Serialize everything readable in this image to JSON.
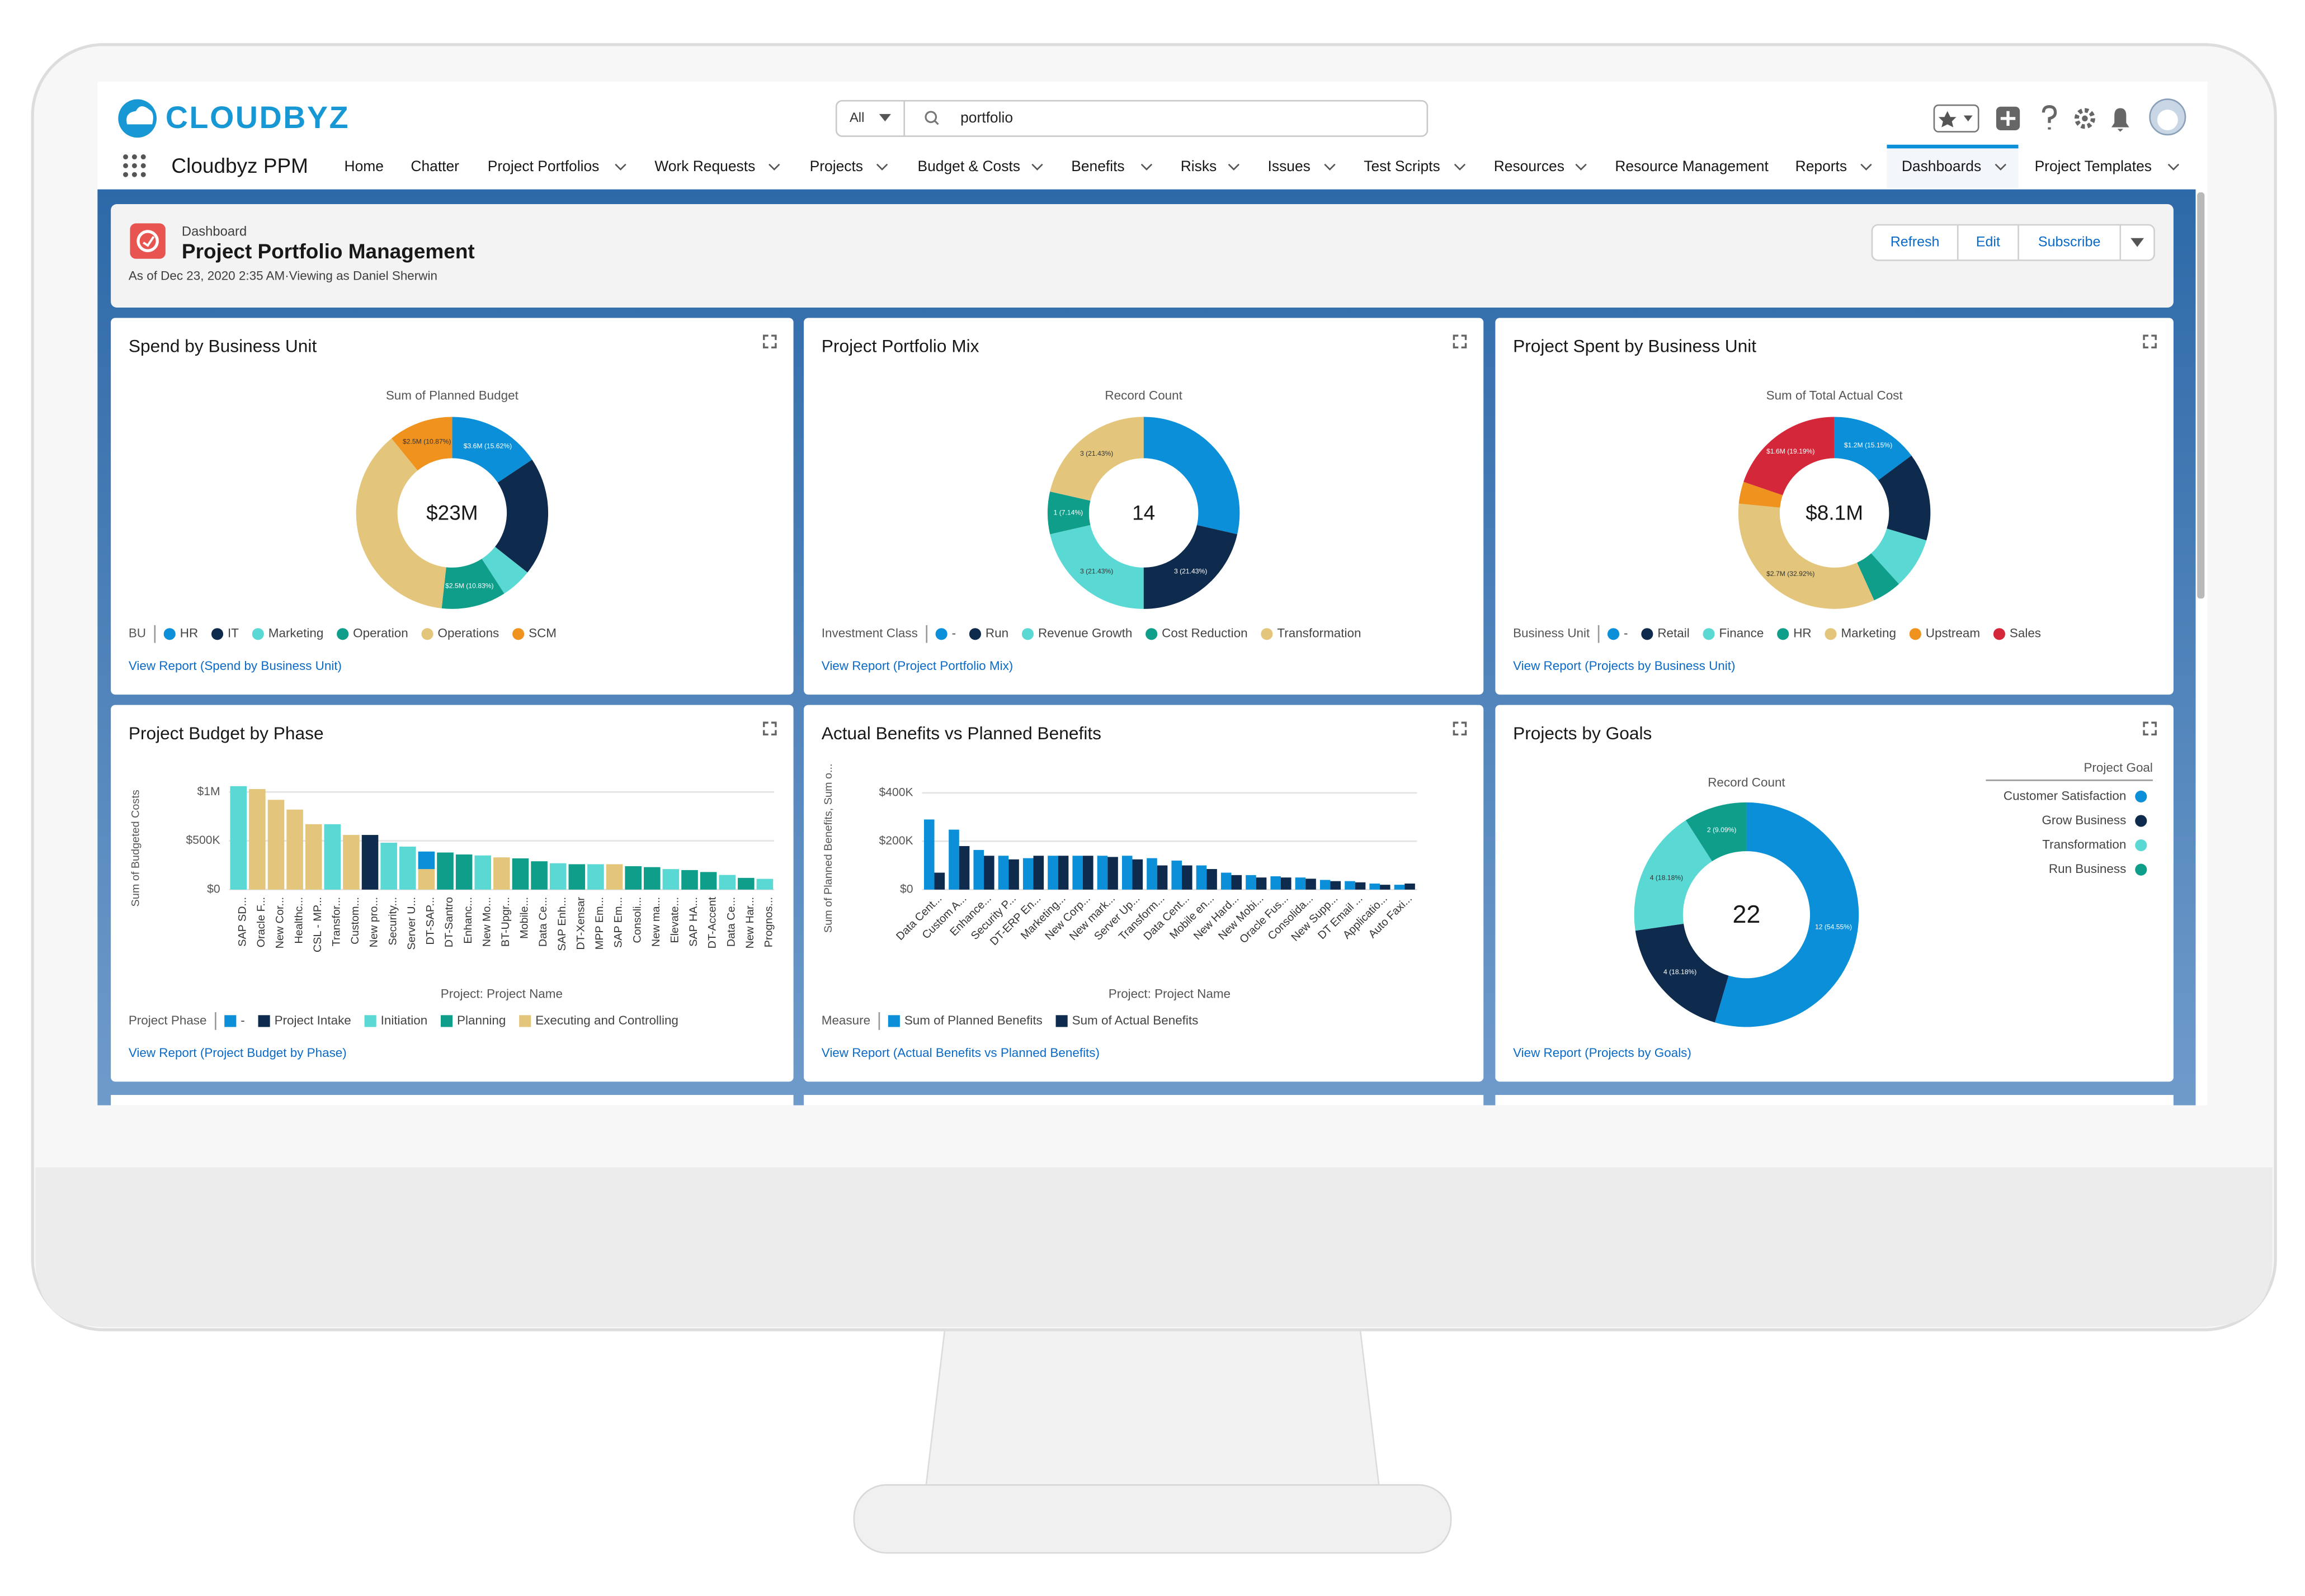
{
  "app": {
    "brand": "CLOUDBYZ",
    "app_name": "Cloudbyz PPM",
    "search_scope": "All",
    "search_text": "portfolio"
  },
  "nav": [
    "Home",
    "Chatter",
    "Project Portfolios",
    "Work Requests",
    "Projects",
    "Budget & Costs",
    "Benefits",
    "Risks",
    "Issues",
    "Test Scripts",
    "Resources",
    "Resource Management",
    "Reports",
    "Dashboards",
    "Project Templates"
  ],
  "nav_active_index": 13,
  "header": {
    "label": "Dashboard",
    "title": "Project Portfolio Management",
    "subtitle": "As of Dec 23, 2020 2:35 AM·Viewing as Daniel Sherwin",
    "buttons": [
      "Refresh",
      "Edit",
      "Subscribe"
    ]
  },
  "widgets": [
    {
      "title": "Spend by Business Unit",
      "link": "View Report (Spend by Business Unit)",
      "chart_data": {
        "type": "donut",
        "subtitle": "Sum of Planned Budget",
        "center_label": "$23M",
        "legend_title": "BU",
        "legend": "bottom",
        "categories": [
          "HR",
          "IT",
          "Marketing",
          "Operation",
          "Operations",
          "SCM"
        ],
        "values": [
          3.6,
          4.6,
          1.2,
          2.5,
          8.6,
          2.5
        ],
        "value_labels": [
          "$3.6M (15.62%)",
          null,
          null,
          "$2.5M (10.83%)",
          null,
          "$2.5M (10.87%)"
        ],
        "colors": [
          "#0b8fd8",
          "#0e2a4d",
          "#5ad8d3",
          "#0e9e8a",
          "#e3c67c",
          "#f0921e"
        ]
      }
    },
    {
      "title": "Project Portfolio Mix",
      "link": "View Report (Project Portfolio Mix)",
      "chart_data": {
        "type": "donut",
        "subtitle": "Record Count",
        "center_label": "14",
        "legend_title": "Investment Class",
        "legend": "bottom",
        "categories": [
          "-",
          "Run",
          "Revenue Growth",
          "Cost Reduction",
          "Transformation"
        ],
        "values": [
          4,
          3,
          3,
          1,
          3
        ],
        "value_labels": [
          null,
          "3 (21.43%)",
          "3 (21.43%)",
          "1 (7.14%)",
          "3 (21.43%)"
        ],
        "colors": [
          "#0b8fd8",
          "#0e2a4d",
          "#5ad8d3",
          "#0e9e8a",
          "#e3c67c"
        ]
      }
    },
    {
      "title": "Project Spent by Business Unit",
      "link": "View Report (Projects by Business Unit)",
      "chart_data": {
        "type": "donut",
        "subtitle": "Sum of Total Actual Cost",
        "center_label": "$8.1M",
        "legend_title": "Business Unit",
        "legend": "bottom",
        "categories": [
          "-",
          "Retail",
          "Finance",
          "HR",
          "Marketing",
          "Upstream",
          "Sales"
        ],
        "values": [
          1.2,
          1.2,
          0.7,
          0.4,
          2.7,
          0.3,
          1.6
        ],
        "value_labels": [
          "$1.2M (15.15%)",
          null,
          null,
          null,
          "$2.7M (32.92%)",
          null,
          "$1.6M (19.19%)"
        ],
        "colors": [
          "#0b8fd8",
          "#0e2a4d",
          "#5ad8d3",
          "#0e9e8a",
          "#e3c67c",
          "#f0921e",
          "#d4283a"
        ]
      }
    },
    {
      "title": "Project Budget by Phase",
      "link": "View Report (Project Budget by Phase)",
      "chart_data": {
        "type": "bar",
        "stacked": true,
        "xlabel_rotation": 90,
        "ylabel": "Sum of Budgeted Costs",
        "xlabel": "Project: Project Name",
        "legend_title": "Project Phase",
        "ylim": [
          0,
          1090000
        ],
        "yticks": [
          {
            "value": 0,
            "label": "$0"
          },
          {
            "value": 500000,
            "label": "$500K"
          },
          {
            "value": 1000000,
            "label": "$1M"
          }
        ],
        "categories": [
          "SAP SD...",
          "Oracle F...",
          "New Cor...",
          "Healthc...",
          "CSL - MP...",
          "Transfor...",
          "Custom...",
          "New pro...",
          "Security...",
          "Server U...",
          "DT-SAP...",
          "DT-Santro",
          "Enhanc...",
          "New Mo...",
          "BT-Upgr...",
          "Mobile...",
          "Data Ce...",
          "SAP Enh...",
          "DT-Xensar",
          "MPP Em...",
          "SAP Em...",
          "Consoli...",
          "New ma...",
          "Elevate...",
          "SAP HA...",
          "DT-Accent",
          "Data Ce...",
          "New Har...",
          "Prognos..."
        ],
        "series": [
          {
            "name": "-",
            "color": "#0b8fd8",
            "values": [
              null,
              null,
              null,
              null,
              null,
              null,
              null,
              null,
              null,
              null,
              180000,
              null,
              null,
              null,
              null,
              null,
              null,
              null,
              null,
              null,
              null,
              null,
              null,
              null,
              null,
              null,
              null,
              null,
              null
            ]
          },
          {
            "name": "Project Intake",
            "color": "#0e2a4d",
            "values": [
              null,
              null,
              null,
              null,
              null,
              null,
              null,
              560000,
              null,
              null,
              null,
              null,
              null,
              null,
              null,
              null,
              null,
              null,
              null,
              null,
              null,
              null,
              null,
              null,
              null,
              null,
              null,
              null,
              null
            ]
          },
          {
            "name": "Initiation",
            "color": "#5ad8d3",
            "values": [
              1060000,
              null,
              null,
              null,
              null,
              670000,
              null,
              null,
              480000,
              440000,
              null,
              null,
              null,
              350000,
              null,
              null,
              null,
              270000,
              null,
              260000,
              null,
              null,
              null,
              210000,
              null,
              null,
              150000,
              null,
              110000
            ]
          },
          {
            "name": "Planning",
            "color": "#0e9e8a",
            "values": [
              null,
              null,
              null,
              null,
              null,
              null,
              null,
              null,
              null,
              null,
              null,
              380000,
              360000,
              null,
              null,
              320000,
              290000,
              null,
              260000,
              null,
              null,
              240000,
              230000,
              null,
              200000,
              180000,
              null,
              120000,
              null
            ]
          },
          {
            "name": "Executing and Controlling",
            "color": "#e3c67c",
            "values": [
              null,
              1030000,
              920000,
              820000,
              670000,
              null,
              560000,
              null,
              null,
              null,
              210000,
              null,
              null,
              null,
              330000,
              null,
              null,
              null,
              null,
              null,
              260000,
              null,
              null,
              null,
              null,
              null,
              null,
              null,
              null
            ]
          }
        ]
      }
    },
    {
      "title": "Actual Benefits vs Planned Benefits",
      "link": "View Report (Actual Benefits vs Planned Benefits)",
      "chart_data": {
        "type": "bar",
        "stacked": false,
        "xlabel_rotation": 45,
        "ylabel": "Sum of Planned Benefits, Sum o...",
        "xlabel": "Project: Project Name",
        "legend_title": "Measure",
        "ylim": [
          0,
          440000
        ],
        "yticks": [
          {
            "value": 0,
            "label": "$0"
          },
          {
            "value": 200000,
            "label": "$200K"
          },
          {
            "value": 400000,
            "label": "$400K"
          }
        ],
        "categories": [
          "Data Cent...",
          "Custom A...",
          "Enhance...",
          "Security P...",
          "DT-ERP En...",
          "Marketing...",
          "New Corp...",
          "New mark...",
          "Server Up...",
          "Transform...",
          "Data Cent...",
          "Mobile en...",
          "New Hard...",
          "New Mobi...",
          "Oracle Fus...",
          "Consolida...",
          "New Supp...",
          "DT Email ...",
          "Applicatio...",
          "Auto Faxi..."
        ],
        "series": [
          {
            "name": "Sum of Planned Benefits",
            "color": "#0b8fd8",
            "values": [
              290000,
              248000,
              164000,
              140000,
              130000,
              140000,
              140000,
              140000,
              140000,
              130000,
              120000,
              100000,
              70000,
              60000,
              55000,
              50000,
              40000,
              35000,
              25000,
              20000
            ]
          },
          {
            "name": "Sum of Actual Benefits",
            "color": "#0e2a4d",
            "values": [
              70000,
              180000,
              140000,
              125000,
              140000,
              140000,
              140000,
              135000,
              125000,
              100000,
              100000,
              85000,
              60000,
              50000,
              50000,
              45000,
              35000,
              30000,
              20000,
              25000
            ]
          }
        ]
      }
    },
    {
      "title": "Projects by Goals",
      "link": "View Report (Projects by Goals)",
      "chart_data": {
        "type": "donut",
        "subtitle": "Record Count",
        "center_label": "22",
        "legend_title": "Project Goal",
        "legend": "right",
        "categories": [
          "Customer Satisfaction",
          "Grow Business",
          "Transformation",
          "Run Business"
        ],
        "values": [
          12,
          4,
          4,
          2
        ],
        "value_labels": [
          "12 (54.55%)",
          "4 (18.18%)",
          "4 (18.18%)",
          "2 (9.09%)"
        ],
        "colors": [
          "#0b8fd8",
          "#0e2a4d",
          "#5ad8d3",
          "#0e9e8a"
        ]
      }
    }
  ]
}
